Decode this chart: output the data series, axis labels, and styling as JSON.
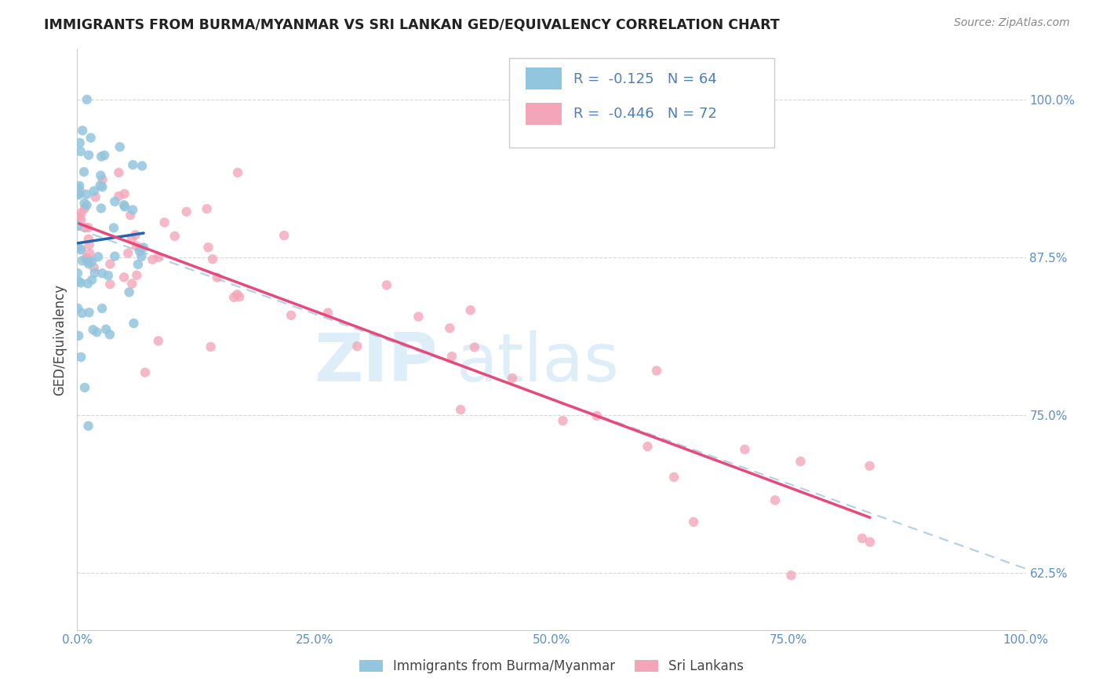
{
  "title": "IMMIGRANTS FROM BURMA/MYANMAR VS SRI LANKAN GED/EQUIVALENCY CORRELATION CHART",
  "source": "Source: ZipAtlas.com",
  "ylabel": "GED/Equivalency",
  "ytick_vals": [
    62.5,
    75.0,
    87.5,
    100.0
  ],
  "ytick_labels": [
    "62.5%",
    "75.0%",
    "87.5%",
    "100.0%"
  ],
  "xtick_vals": [
    0.0,
    25.0,
    50.0,
    75.0,
    100.0
  ],
  "xtick_labels": [
    "0.0%",
    "25.0%",
    "50.0%",
    "75.0%",
    "100.0%"
  ],
  "legend_blue_r": "-0.125",
  "legend_blue_n": "64",
  "legend_pink_r": "-0.446",
  "legend_pink_n": "72",
  "legend_blue_label": "Immigrants from Burma/Myanmar",
  "legend_pink_label": "Sri Lankans",
  "blue_color": "#92c5de",
  "pink_color": "#f4a6b8",
  "blue_line_color": "#2166ac",
  "pink_line_color": "#e8487a",
  "dash_line_color": "#aac8e8",
  "tick_label_color": "#5b8fcc",
  "background_color": "#ffffff",
  "grid_color": "#d8d8d8",
  "title_color": "#222222",
  "source_color": "#888888",
  "ylabel_color": "#444444",
  "legend_text_color": "#4a7fc1",
  "watermark_color": "#ddeef8",
  "xmin": 0.0,
  "xmax": 100.0,
  "ymin": 58.0,
  "ymax": 104.0
}
